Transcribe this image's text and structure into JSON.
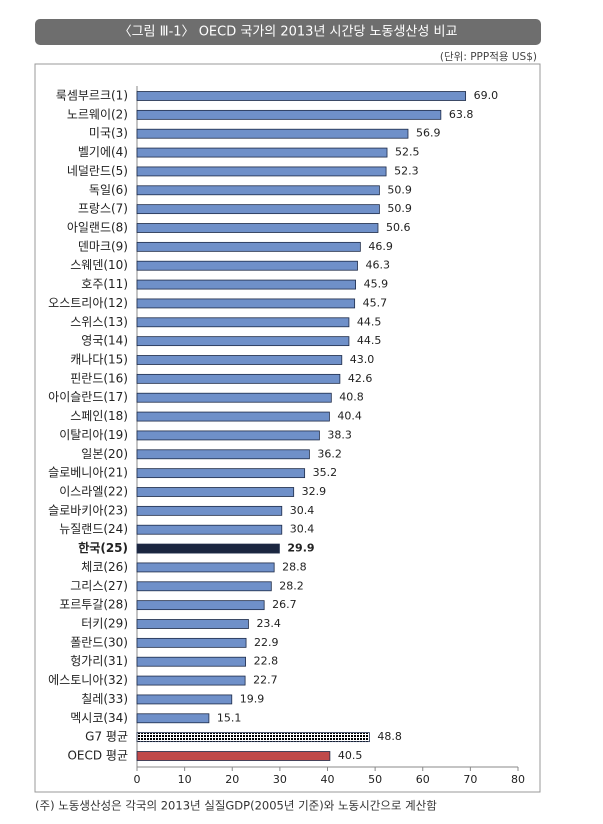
{
  "chart_data": {
    "type": "hbar",
    "title": "〈그림 Ⅲ-1〉 OECD 국가의 2013년 시간당 노동생산성 비교",
    "unit_note": "(단위: PPP적용 US$)",
    "footnote": "(주) 노동생산성은 각국의 2013년 실질GDP(2005년 기준)와 노동시간으로 계산함",
    "categories": [
      "룩셈부르크(1)",
      "노르웨이(2)",
      "미국(3)",
      "벨기에(4)",
      "네덜란드(5)",
      "독일(6)",
      "프랑스(7)",
      "아일랜드(8)",
      "덴마크(9)",
      "스웨덴(10)",
      "호주(11)",
      "오스트리아(12)",
      "스위스(13)",
      "영국(14)",
      "캐나다(15)",
      "핀란드(16)",
      "아이슬란드(17)",
      "스페인(18)",
      "이탈리아(19)",
      "일본(20)",
      "슬로베니아(21)",
      "이스라엘(22)",
      "슬로바키아(23)",
      "뉴질랜드(24)",
      "한국(25)",
      "체코(26)",
      "그리스(27)",
      "포르투갈(28)",
      "터키(29)",
      "폴란드(30)",
      "헝가리(31)",
      "에스토니아(32)",
      "칠레(33)",
      "멕시코(34)",
      "G7 평균",
      "OECD 평균"
    ],
    "values": [
      69.0,
      63.8,
      56.9,
      52.5,
      52.3,
      50.9,
      50.9,
      50.6,
      46.9,
      46.3,
      45.9,
      45.7,
      44.5,
      44.5,
      43.0,
      42.6,
      40.8,
      40.4,
      38.3,
      36.2,
      35.2,
      32.9,
      30.4,
      30.4,
      29.9,
      28.8,
      28.2,
      26.7,
      23.4,
      22.9,
      22.8,
      22.7,
      19.9,
      15.1,
      48.8,
      40.5
    ],
    "value_labels": [
      "69.0",
      "63.8",
      "56.9",
      "52.5",
      "52.3",
      "50.9",
      "50.9",
      "50.6",
      "46.9",
      "46.3",
      "45.9",
      "45.7",
      "44.5",
      "44.5",
      "43.0",
      "42.6",
      "40.8",
      "40.4",
      "38.3",
      "36.2",
      "35.2",
      "32.9",
      "30.4",
      "30.4",
      "29.9",
      "28.8",
      "28.2",
      "26.7",
      "23.4",
      "22.9",
      "22.8",
      "22.7",
      "19.9",
      "15.1",
      "48.8",
      "40.5"
    ],
    "color": "#6f90c9",
    "highlight": {
      "index": 24,
      "color": "#1b2640"
    },
    "dotted": {
      "index": 34,
      "color": "#1f3a6e"
    },
    "average": {
      "index": 35,
      "color": "#c0494a"
    },
    "xlim": [
      0,
      80
    ],
    "xticks": [
      0,
      10,
      20,
      30,
      40,
      50,
      60,
      70,
      80
    ],
    "grid": false
  }
}
